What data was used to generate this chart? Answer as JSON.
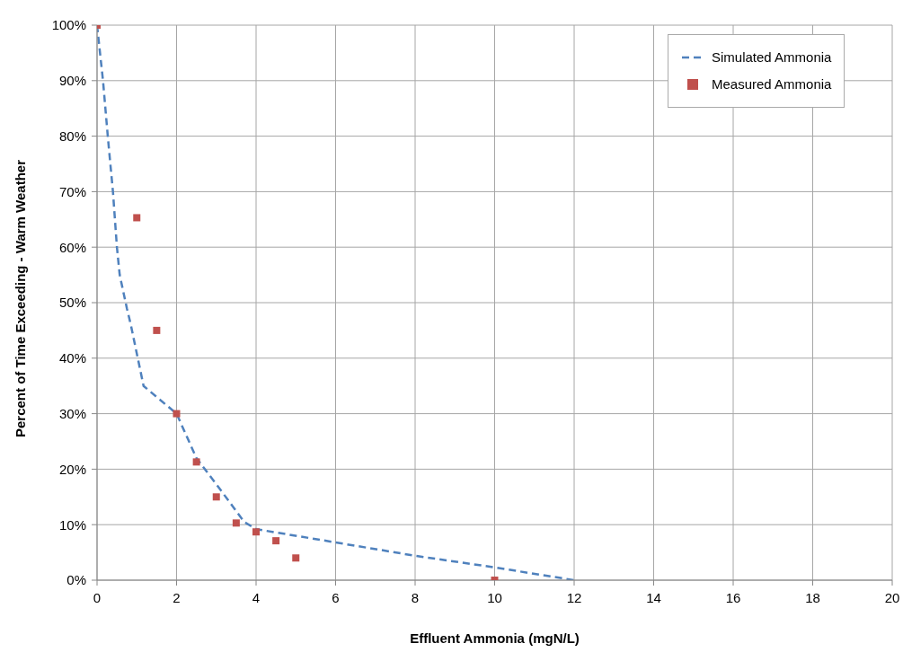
{
  "chart_data": {
    "type": "scatter",
    "xlabel": "Effluent Ammonia (mgN/L)",
    "ylabel": "Percent of Time Exceeding - Warm Weather",
    "xlim": [
      0,
      20
    ],
    "xticks": [
      0,
      2,
      4,
      6,
      8,
      10,
      12,
      14,
      16,
      18,
      20
    ],
    "ylim": [
      0,
      100
    ],
    "yticks": [
      {
        "value": 0,
        "label": "0%"
      },
      {
        "value": 10,
        "label": "10%"
      },
      {
        "value": 20,
        "label": "20%"
      },
      {
        "value": 30,
        "label": "30%"
      },
      {
        "value": 40,
        "label": "40%"
      },
      {
        "value": 50,
        "label": "50%"
      },
      {
        "value": 60,
        "label": "60%"
      },
      {
        "value": 70,
        "label": "70%"
      },
      {
        "value": 80,
        "label": "80%"
      },
      {
        "value": 90,
        "label": "90%"
      },
      {
        "value": 100,
        "label": "100%"
      }
    ],
    "grid": true,
    "legend": "top right",
    "series": [
      {
        "name": "Simulated Ammonia",
        "type": "line",
        "line_style": "dashed",
        "marker": "none",
        "color": "#4f81bd",
        "x": [
          0,
          0.15,
          0.27,
          0.4,
          0.5,
          0.57,
          0.75,
          0.85,
          1.17,
          2,
          2.5,
          3.03,
          3.7,
          4,
          6,
          8,
          10,
          12
        ],
        "values": [
          100,
          90,
          80,
          70,
          60,
          55,
          49,
          46,
          35,
          30,
          22,
          17,
          10.5,
          9.2,
          6.8,
          4.4,
          2.3,
          0
        ]
      },
      {
        "name": "Measured Ammonia",
        "type": "scatter",
        "marker": "square",
        "color": "#c0504d",
        "x": [
          0,
          1,
          1.5,
          2,
          2.5,
          3,
          3.5,
          4,
          4.5,
          5,
          10
        ],
        "values": [
          100,
          65.3,
          45,
          30,
          21.3,
          15,
          10.3,
          8.7,
          7.1,
          4,
          0
        ]
      }
    ]
  }
}
